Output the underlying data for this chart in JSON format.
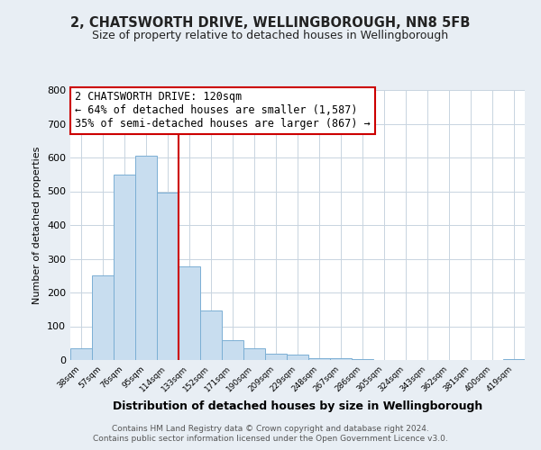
{
  "title": "2, CHATSWORTH DRIVE, WELLINGBOROUGH, NN8 5FB",
  "subtitle": "Size of property relative to detached houses in Wellingborough",
  "xlabel": "Distribution of detached houses by size in Wellingborough",
  "ylabel": "Number of detached properties",
  "bar_color": "#c8ddef",
  "bar_edge_color": "#7bafd4",
  "bins": [
    "38sqm",
    "57sqm",
    "76sqm",
    "95sqm",
    "114sqm",
    "133sqm",
    "152sqm",
    "171sqm",
    "190sqm",
    "209sqm",
    "229sqm",
    "248sqm",
    "267sqm",
    "286sqm",
    "305sqm",
    "324sqm",
    "343sqm",
    "362sqm",
    "381sqm",
    "400sqm",
    "419sqm"
  ],
  "values": [
    35,
    250,
    550,
    605,
    495,
    278,
    148,
    60,
    35,
    20,
    15,
    5,
    5,
    2,
    1,
    1,
    1,
    1,
    1,
    0,
    2
  ],
  "vline_index": 4,
  "vline_color": "#cc0000",
  "annotation_title": "2 CHATSWORTH DRIVE: 120sqm",
  "annotation_line1": "← 64% of detached houses are smaller (1,587)",
  "annotation_line2": "35% of semi-detached houses are larger (867) →",
  "annotation_box_edge_color": "#cc0000",
  "annotation_bg_color": "#ffffff",
  "ylim": [
    0,
    800
  ],
  "yticks": [
    0,
    100,
    200,
    300,
    400,
    500,
    600,
    700,
    800
  ],
  "footer1": "Contains HM Land Registry data © Crown copyright and database right 2024.",
  "footer2": "Contains public sector information licensed under the Open Government Licence v3.0.",
  "background_color": "#e8eef4",
  "plot_bg_color": "#ffffff",
  "grid_color": "#c8d4e0"
}
